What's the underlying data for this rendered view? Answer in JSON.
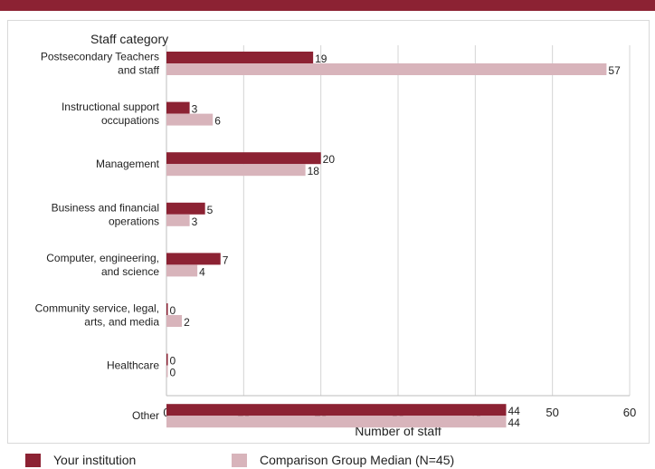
{
  "chart_data": {
    "type": "bar",
    "orientation": "horizontal",
    "ylabel": "Staff category",
    "xlabel": "Number of staff",
    "xlim": [
      0,
      60
    ],
    "xticks": [
      0,
      10,
      20,
      30,
      40,
      50,
      60
    ],
    "grid": true,
    "legend_position": "bottom",
    "categories": [
      [
        "Postsecondary Teachers",
        "and staff"
      ],
      [
        "Instructional support",
        "occupations"
      ],
      [
        "Management"
      ],
      [
        "Business and financial",
        "operations"
      ],
      [
        "Computer, engineering,",
        "and science"
      ],
      [
        "Community service, legal,",
        "arts, and media"
      ],
      [
        "Healthcare"
      ],
      [
        "Other"
      ]
    ],
    "series": [
      {
        "name": "Your institution",
        "color": "#8c2233",
        "values": [
          19,
          3,
          20,
          5,
          7,
          0,
          0,
          44
        ]
      },
      {
        "name": "Comparison Group Median (N=45)",
        "color": "#d8b4bb",
        "values": [
          57,
          6,
          18,
          3,
          4,
          2,
          0,
          44
        ]
      }
    ]
  },
  "colors": {
    "top_bar": "#8c2233",
    "grid": "#d4d4d4",
    "frame": "#d9d9d9"
  }
}
